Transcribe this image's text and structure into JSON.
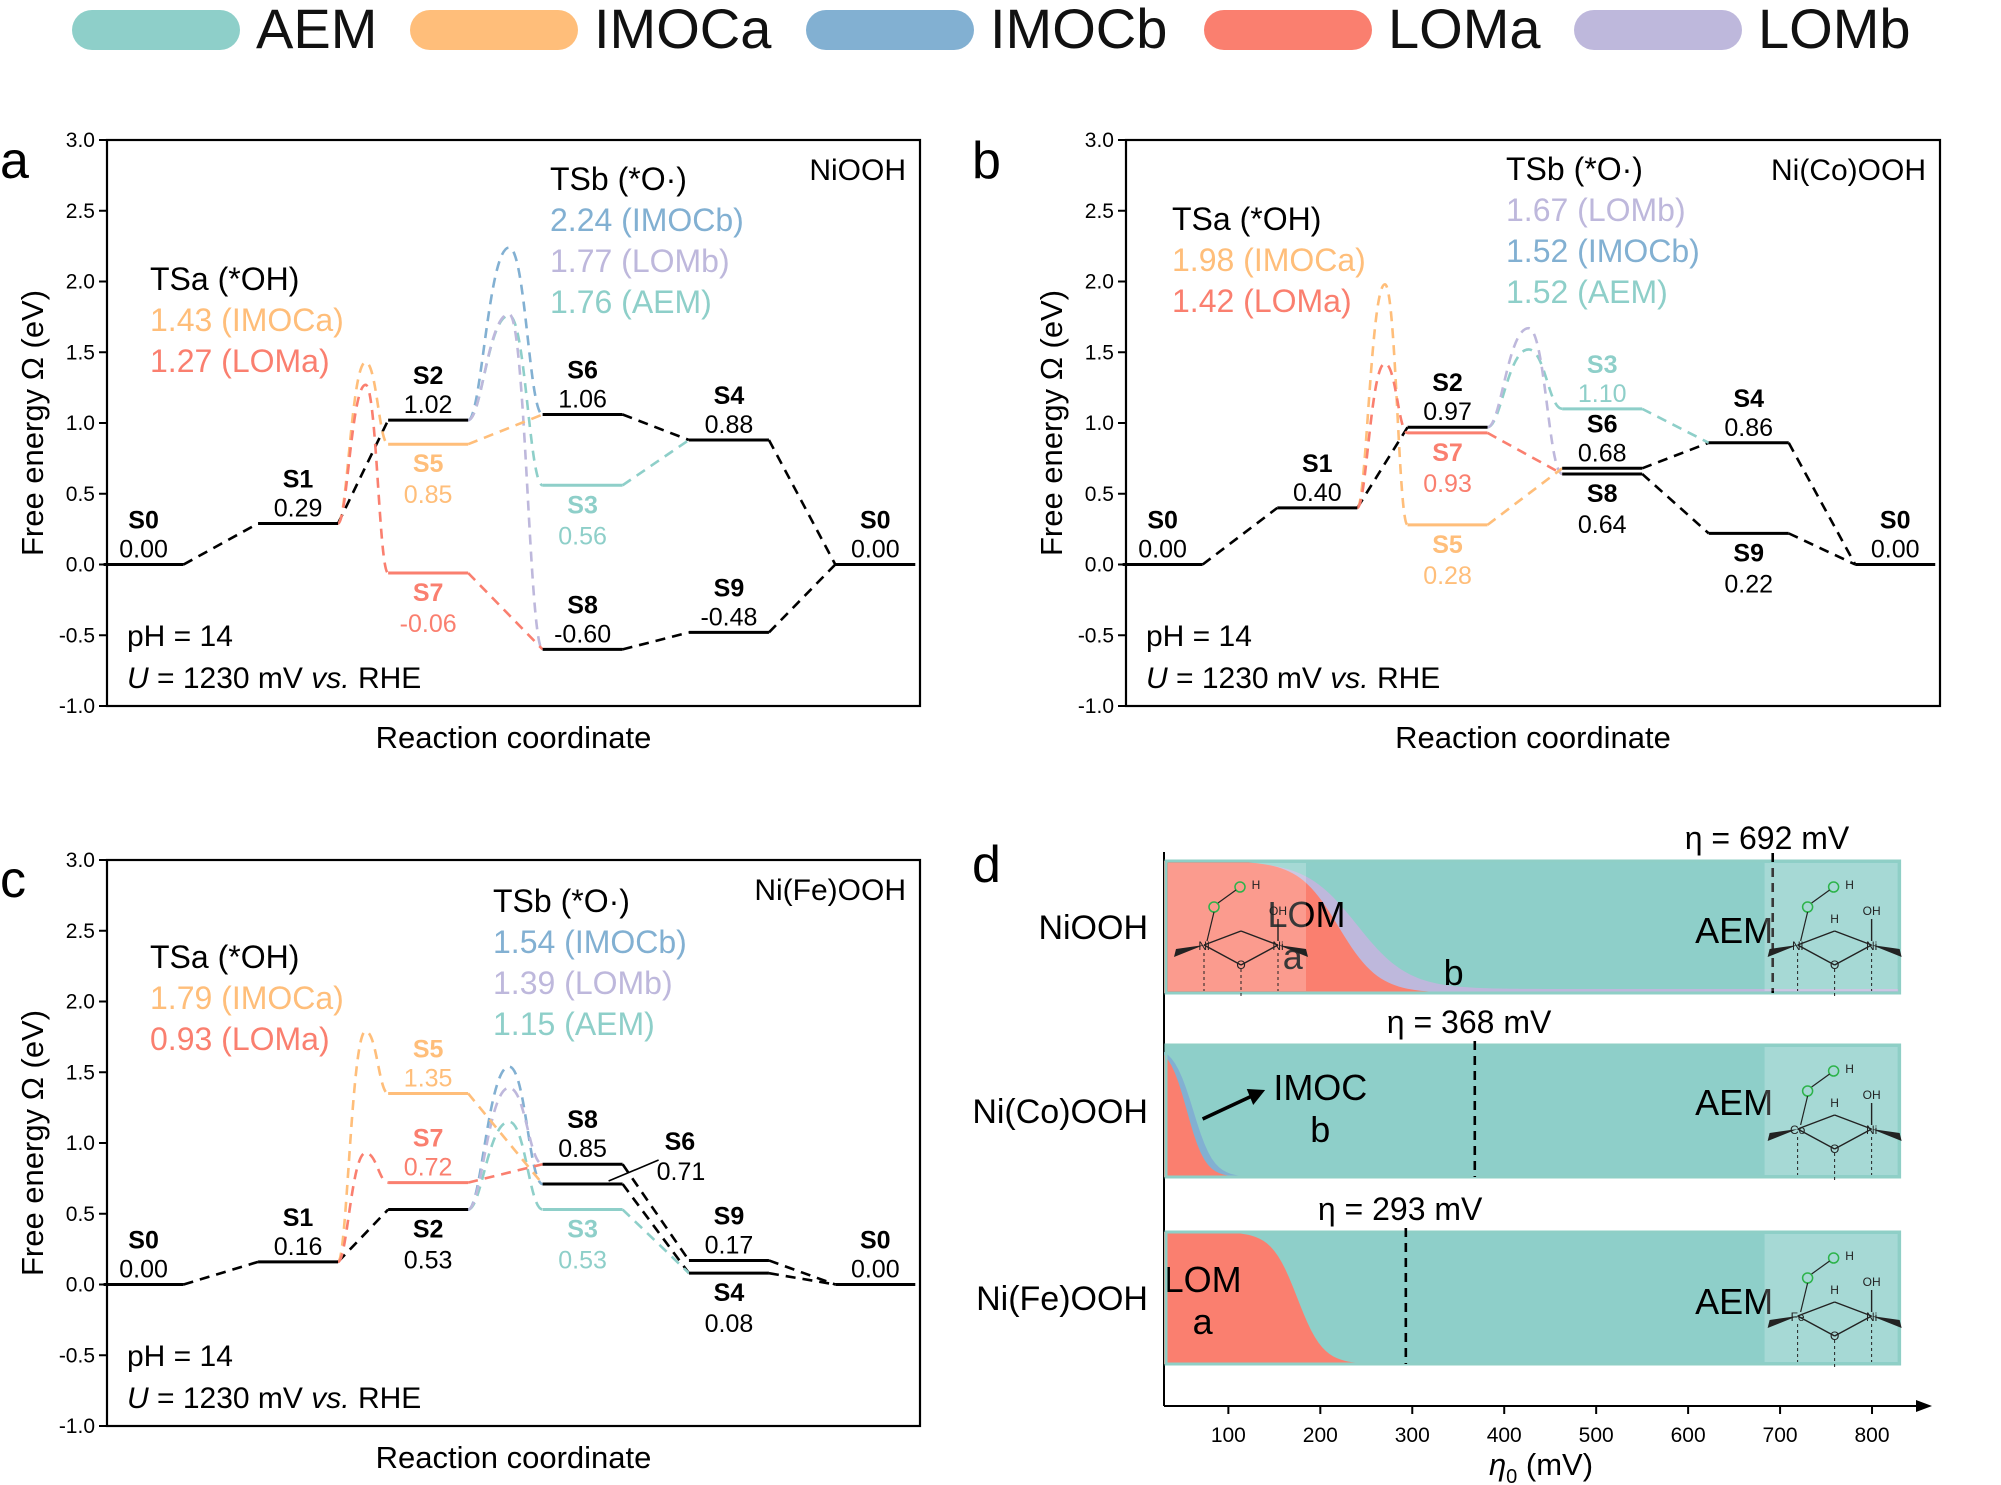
{
  "colors": {
    "AEM": "#8ECFC9",
    "IMOCa": "#FFBE7A",
    "IMOCb": "#82B0D2",
    "LOMa": "#FA7F6F",
    "LOMb": "#BEB8DC",
    "black": "#000000"
  },
  "legend": [
    {
      "key": "AEM",
      "label": "AEM"
    },
    {
      "key": "IMOCa",
      "label": "IMOCa"
    },
    {
      "key": "IMOCb",
      "label": "IMOCb"
    },
    {
      "key": "LOMa",
      "label": "LOMa"
    },
    {
      "key": "LOMb",
      "label": "LOMb"
    }
  ],
  "chart_data": [
    {
      "panel": "a",
      "type": "line",
      "title": "NiOOH",
      "xlabel": "Reaction coordinate",
      "ylabel": "Free energy Ω (eV)",
      "ylim": [
        -1.0,
        3.0
      ],
      "yticks": [
        "-1.0",
        "-0.5",
        "0.0",
        "0.5",
        "1.0",
        "1.5",
        "2.0",
        "2.5",
        "3.0"
      ],
      "conditions": {
        "ph": "pH = 14",
        "u_var": "U",
        "u_mid": " = 1230 mV ",
        "u_vs": "vs.",
        "u_end": " RHE"
      },
      "ts_a": {
        "title": "TSa (*OH)",
        "lines": [
          {
            "text": "1.43 (IMOCa)",
            "key": "IMOCa"
          },
          {
            "text": "1.27 (LOMa)",
            "key": "LOMa"
          }
        ]
      },
      "ts_b": {
        "title": "TSb (*O·)",
        "lines": [
          {
            "text": "2.24 (IMOCb)",
            "key": "IMOCb"
          },
          {
            "text": "1.77 (LOMb)",
            "key": "LOMb"
          },
          {
            "text": "1.76 (AEM)",
            "key": "AEM"
          }
        ]
      },
      "levels": [
        {
          "id": "S0",
          "name": "S0",
          "value": "0.00",
          "energy": 0.0,
          "pos": 0,
          "key": "black",
          "label": "above"
        },
        {
          "id": "S1",
          "name": "S1",
          "value": "0.29",
          "energy": 0.29,
          "pos": 1,
          "key": "black",
          "label": "above"
        },
        {
          "id": "S2",
          "name": "S2",
          "value": "1.02",
          "energy": 1.02,
          "pos": 2,
          "key": "black",
          "label": "above"
        },
        {
          "id": "S5",
          "name": "S5",
          "value": "0.85",
          "energy": 0.85,
          "pos": 2,
          "key": "IMOCa",
          "label": "below"
        },
        {
          "id": "S7",
          "name": "S7",
          "value": "-0.06",
          "energy": -0.06,
          "pos": 2,
          "key": "LOMa",
          "label": "below"
        },
        {
          "id": "S6",
          "name": "S6",
          "value": "1.06",
          "energy": 1.06,
          "pos": 3,
          "key": "black",
          "label": "above"
        },
        {
          "id": "S3",
          "name": "S3",
          "value": "0.56",
          "energy": 0.56,
          "pos": 3,
          "key": "AEM",
          "label": "below"
        },
        {
          "id": "S8",
          "name": "S8",
          "value": "-0.60",
          "energy": -0.6,
          "pos": 3,
          "key": "black",
          "label": "above"
        },
        {
          "id": "S4",
          "name": "S4",
          "value": "0.88",
          "energy": 0.88,
          "pos": 4,
          "key": "black",
          "label": "above"
        },
        {
          "id": "S9",
          "name": "S9",
          "value": "-0.48",
          "energy": -0.48,
          "pos": 4,
          "key": "black",
          "label": "above"
        },
        {
          "id": "S0e",
          "name": "S0",
          "value": "0.00",
          "energy": 0.0,
          "pos": 5,
          "key": "black",
          "label": "above"
        }
      ],
      "connectors": [
        {
          "from": "S0",
          "to": "S1",
          "key": "black"
        },
        {
          "from": "S1",
          "to": "S2",
          "key": "black"
        },
        {
          "from": "S1",
          "to": "S5",
          "key": "IMOCa",
          "peak": 1.43
        },
        {
          "from": "S1",
          "to": "S7",
          "key": "LOMa",
          "peak": 1.27
        },
        {
          "from": "S2",
          "to": "S6",
          "key": "IMOCb",
          "peak": 2.24
        },
        {
          "from": "S2",
          "to": "S3",
          "key": "AEM",
          "peak": 1.76
        },
        {
          "from": "S2",
          "to": "S8",
          "key": "LOMb",
          "peak": 1.77
        },
        {
          "from": "S5",
          "to": "S6",
          "key": "IMOCa"
        },
        {
          "from": "S7",
          "to": "S8",
          "key": "LOMa"
        },
        {
          "from": "S6",
          "to": "S4",
          "key": "black"
        },
        {
          "from": "S3",
          "to": "S4",
          "key": "AEM"
        },
        {
          "from": "S8",
          "to": "S9",
          "key": "black"
        },
        {
          "from": "S4",
          "to": "S0e",
          "key": "black"
        },
        {
          "from": "S9",
          "to": "S0e",
          "key": "black"
        }
      ]
    },
    {
      "panel": "b",
      "type": "line",
      "title": "Ni(Co)OOH",
      "xlabel": "Reaction coordinate",
      "ylabel": "Free energy Ω (eV)",
      "ylim": [
        -1.0,
        3.0
      ],
      "yticks": [
        "-1.0",
        "-0.5",
        "0.0",
        "0.5",
        "1.0",
        "1.5",
        "2.0",
        "2.5",
        "3.0"
      ],
      "conditions": {
        "ph": "pH = 14",
        "u_var": "U",
        "u_mid": " = 1230 mV ",
        "u_vs": "vs.",
        "u_end": " RHE"
      },
      "ts_a": {
        "title": "TSa (*OH)",
        "lines": [
          {
            "text": "1.98 (IMOCa)",
            "key": "IMOCa"
          },
          {
            "text": "1.42 (LOMa)",
            "key": "LOMa"
          }
        ]
      },
      "ts_b": {
        "title": "TSb (*O·)",
        "lines": [
          {
            "text": "1.67 (LOMb)",
            "key": "LOMb"
          },
          {
            "text": "1.52 (IMOCb)",
            "key": "IMOCb"
          },
          {
            "text": "1.52 (AEM)",
            "key": "AEM"
          }
        ]
      },
      "levels": [
        {
          "id": "S0",
          "name": "S0",
          "value": "0.00",
          "energy": 0.0,
          "pos": 0,
          "key": "black",
          "label": "above"
        },
        {
          "id": "S1",
          "name": "S1",
          "value": "0.40",
          "energy": 0.4,
          "pos": 1,
          "key": "black",
          "label": "above"
        },
        {
          "id": "S2",
          "name": "S2",
          "value": "0.97",
          "energy": 0.97,
          "pos": 2,
          "key": "black",
          "label": "above"
        },
        {
          "id": "S7",
          "name": "S7",
          "value": "0.93",
          "energy": 0.93,
          "pos": 2,
          "key": "LOMa",
          "label": "below"
        },
        {
          "id": "S5",
          "name": "S5",
          "value": "0.28",
          "energy": 0.28,
          "pos": 2,
          "key": "IMOCa",
          "label": "below"
        },
        {
          "id": "S3",
          "name": "S3",
          "value": "1.10",
          "energy": 1.1,
          "pos": 3,
          "key": "AEM",
          "label": "above"
        },
        {
          "id": "S6",
          "name": "S6",
          "value": "0.68",
          "energy": 0.68,
          "pos": 3,
          "key": "black",
          "label": "above"
        },
        {
          "id": "S8",
          "name": "S8",
          "value": "0.64",
          "energy": 0.64,
          "pos": 3,
          "key": "black",
          "label": "below"
        },
        {
          "id": "S4",
          "name": "S4",
          "value": "0.86",
          "energy": 0.86,
          "pos": 4,
          "key": "black",
          "label": "above"
        },
        {
          "id": "S9",
          "name": "S9",
          "value": "0.22",
          "energy": 0.22,
          "pos": 4,
          "key": "black",
          "label": "below"
        },
        {
          "id": "S0e",
          "name": "S0",
          "value": "0.00",
          "energy": 0.0,
          "pos": 5,
          "key": "black",
          "label": "above"
        }
      ],
      "connectors": [
        {
          "from": "S0",
          "to": "S1",
          "key": "black"
        },
        {
          "from": "S1",
          "to": "S2",
          "key": "black"
        },
        {
          "from": "S1",
          "to": "S5",
          "key": "IMOCa",
          "peak": 1.98
        },
        {
          "from": "S1",
          "to": "S7",
          "key": "LOMa",
          "peak": 1.42
        },
        {
          "from": "S2",
          "to": "S3",
          "key": "AEM",
          "peak": 1.52
        },
        {
          "from": "S2",
          "to": "S8",
          "key": "LOMb",
          "peak": 1.67
        },
        {
          "from": "S5",
          "to": "S6",
          "key": "IMOCa"
        },
        {
          "from": "S7",
          "to": "S8",
          "key": "LOMa"
        },
        {
          "from": "S6",
          "to": "S4",
          "key": "black"
        },
        {
          "from": "S3",
          "to": "S4",
          "key": "AEM"
        },
        {
          "from": "S8",
          "to": "S9",
          "key": "black"
        },
        {
          "from": "S4",
          "to": "S0e",
          "key": "black"
        },
        {
          "from": "S9",
          "to": "S0e",
          "key": "black"
        }
      ]
    },
    {
      "panel": "c",
      "type": "line",
      "title": "Ni(Fe)OOH",
      "xlabel": "Reaction coordinate",
      "ylabel": "Free energy Ω (eV)",
      "ylim": [
        -1.0,
        3.0
      ],
      "yticks": [
        "-1.0",
        "-0.5",
        "0.0",
        "0.5",
        "1.0",
        "1.5",
        "2.0",
        "2.5",
        "3.0"
      ],
      "conditions": {
        "ph": "pH = 14",
        "u_var": "U",
        "u_mid": " = 1230 mV ",
        "u_vs": "vs.",
        "u_end": " RHE"
      },
      "ts_a": {
        "title": "TSa (*OH)",
        "lines": [
          {
            "text": "1.79 (IMOCa)",
            "key": "IMOCa"
          },
          {
            "text": "0.93 (LOMa)",
            "key": "LOMa"
          }
        ]
      },
      "ts_b": {
        "title": "TSb (*O·)",
        "lines": [
          {
            "text": "1.54 (IMOCb)",
            "key": "IMOCb"
          },
          {
            "text": "1.39 (LOMb)",
            "key": "LOMb"
          },
          {
            "text": "1.15 (AEM)",
            "key": "AEM"
          }
        ]
      },
      "levels": [
        {
          "id": "S0",
          "name": "S0",
          "value": "0.00",
          "energy": 0.0,
          "pos": 0,
          "key": "black",
          "label": "above"
        },
        {
          "id": "S1",
          "name": "S1",
          "value": "0.16",
          "energy": 0.16,
          "pos": 1,
          "key": "black",
          "label": "above"
        },
        {
          "id": "S5",
          "name": "S5",
          "value": "1.35",
          "energy": 1.35,
          "pos": 2,
          "key": "IMOCa",
          "label": "above"
        },
        {
          "id": "S7",
          "name": "S7",
          "value": "0.72",
          "energy": 0.72,
          "pos": 2,
          "key": "LOMa",
          "label": "above"
        },
        {
          "id": "S2",
          "name": "S2",
          "value": "0.53",
          "energy": 0.53,
          "pos": 2,
          "key": "black",
          "label": "below"
        },
        {
          "id": "S8",
          "name": "S8",
          "value": "0.85",
          "energy": 0.85,
          "pos": 3,
          "key": "black",
          "label": "above"
        },
        {
          "id": "S6",
          "name": "S6",
          "value": "0.71",
          "energy": 0.71,
          "pos": 3,
          "key": "black",
          "label": "callout"
        },
        {
          "id": "S3",
          "name": "S3",
          "value": "0.53",
          "energy": 0.53,
          "pos": 3,
          "key": "AEM",
          "label": "below"
        },
        {
          "id": "S9",
          "name": "S9",
          "value": "0.17",
          "energy": 0.17,
          "pos": 4,
          "key": "black",
          "label": "above"
        },
        {
          "id": "S4",
          "name": "S4",
          "value": "0.08",
          "energy": 0.08,
          "pos": 4,
          "key": "black",
          "label": "below"
        },
        {
          "id": "S0e",
          "name": "S0",
          "value": "0.00",
          "energy": 0.0,
          "pos": 5,
          "key": "black",
          "label": "above"
        }
      ],
      "connectors": [
        {
          "from": "S0",
          "to": "S1",
          "key": "black"
        },
        {
          "from": "S1",
          "to": "S2",
          "key": "black"
        },
        {
          "from": "S1",
          "to": "S5",
          "key": "IMOCa",
          "peak": 1.79
        },
        {
          "from": "S1",
          "to": "S7",
          "key": "LOMa",
          "peak": 0.93
        },
        {
          "from": "S2",
          "to": "S6",
          "key": "IMOCb",
          "peak": 1.54
        },
        {
          "from": "S2",
          "to": "S3",
          "key": "AEM",
          "peak": 1.15
        },
        {
          "from": "S2",
          "to": "S8",
          "key": "LOMb",
          "peak": 1.39
        },
        {
          "from": "S5",
          "to": "S6",
          "key": "IMOCa"
        },
        {
          "from": "S7",
          "to": "S8",
          "key": "LOMa"
        },
        {
          "from": "S6",
          "to": "S4",
          "key": "black"
        },
        {
          "from": "S3",
          "to": "S4",
          "key": "AEM"
        },
        {
          "from": "S8",
          "to": "S9",
          "key": "black"
        },
        {
          "from": "S4",
          "to": "S0e",
          "key": "black"
        },
        {
          "from": "S9",
          "to": "S0e",
          "key": "black"
        }
      ]
    },
    {
      "panel": "d",
      "type": "area",
      "xlabel_var": "η",
      "xlabel_sub": "0",
      "xlabel_unit": " (mV)",
      "xlim": [
        30,
        850
      ],
      "xticks": [
        100,
        200,
        300,
        400,
        500,
        600,
        700,
        800
      ],
      "rows": [
        {
          "label": "NiOOH",
          "eta_text": "η = 692 mV",
          "eta": 692,
          "regions": [
            {
              "key": "LOMa",
              "label": "LOM\na"
            },
            {
              "key": "LOMb",
              "label": "b"
            },
            {
              "key": "AEM",
              "label": "AEM"
            }
          ],
          "struct": {
            "metal1": "Ni",
            "metal2": "Ni",
            "H": "H",
            "O": "O",
            "OH": "OH"
          }
        },
        {
          "label": "Ni(Co)OOH",
          "eta_text": "η = 368 mV",
          "eta": 368,
          "regions": [
            {
              "key": "LOMa",
              "label": ""
            },
            {
              "key": "IMOCb",
              "label": "IMOC\nb"
            },
            {
              "key": "AEM",
              "label": "AEM"
            }
          ],
          "struct": {
            "metal1": "Co",
            "metal2": "Ni",
            "H": "H",
            "O": "O",
            "OH": "OH"
          }
        },
        {
          "label": "Ni(Fe)OOH",
          "eta_text": "η = 293 mV",
          "eta": 293,
          "regions": [
            {
              "key": "LOMa",
              "label": "LOM\na"
            },
            {
              "key": "AEM",
              "label": "AEM"
            }
          ],
          "struct": {
            "metal1": "Fe",
            "metal2": "Ni",
            "H": "H",
            "O": "O",
            "OH": "OH"
          }
        }
      ]
    }
  ]
}
